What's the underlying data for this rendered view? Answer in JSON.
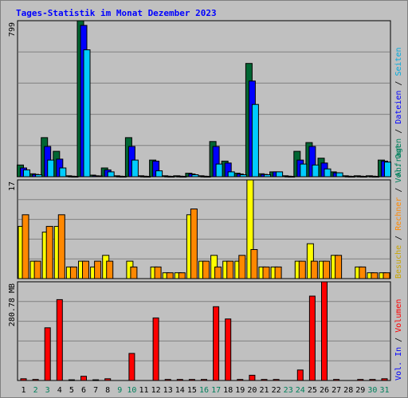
{
  "title": "Tages-Statistik im Monat Dezember 2023",
  "colors": {
    "bg": "#c0c0c0",
    "grid": "#808080",
    "title": "#0000ff",
    "anfragen": "#006633",
    "dateien": "#0000ff",
    "seiten": "#00ccff",
    "besuche": "#ffff00",
    "rechner": "#ff8800",
    "volumen_kb": "#ff0000",
    "weekday_label": "#000000",
    "weekend_label": "#00805c"
  },
  "labels": {
    "panel1_max": "799",
    "panel2_max": "17",
    "panel3_max": "280.78 MB",
    "right1_parts": [
      {
        "text": "Anfragen",
        "color": "#00805c"
      },
      {
        "text": " / ",
        "color": "#000000"
      },
      {
        "text": "Dateien",
        "color": "#0000ff"
      },
      {
        "text": " / ",
        "color": "#000000"
      },
      {
        "text": "Seiten",
        "color": "#00aadd"
      }
    ],
    "right2_parts": [
      {
        "text": "Besuche",
        "color": "#c8a400"
      },
      {
        "text": " / ",
        "color": "#000000"
      },
      {
        "text": "Rechner",
        "color": "#ff8800"
      },
      {
        "text": " / ",
        "color": "#000000"
      },
      {
        "text": "Vol. Out",
        "color": "#00805c"
      }
    ],
    "right3_parts": [
      {
        "text": "Vol. In",
        "color": "#0000ff"
      },
      {
        "text": " / ",
        "color": "#000000"
      },
      {
        "text": "Volumen",
        "color": "#ff0000"
      }
    ]
  },
  "chart_data": [
    {
      "type": "bar",
      "days": [
        1,
        2,
        3,
        4,
        5,
        6,
        7,
        8,
        9,
        10,
        11,
        12,
        13,
        14,
        15,
        16,
        17,
        18,
        19,
        20,
        21,
        22,
        23,
        24,
        25,
        26,
        27,
        28,
        29,
        30,
        31
      ],
      "weekend": [
        2,
        3,
        9,
        10,
        16,
        17,
        23,
        24,
        30,
        31
      ],
      "ylim": [
        0,
        799
      ],
      "ymax_label": "799",
      "series": [
        {
          "name": "Anfragen",
          "values": [
            60,
            15,
            200,
            130,
            5,
            799,
            8,
            45,
            5,
            200,
            5,
            85,
            5,
            5,
            18,
            5,
            180,
            80,
            18,
            580,
            15,
            25,
            5,
            130,
            175,
            95,
            25,
            5,
            5,
            5,
            85
          ]
        },
        {
          "name": "Dateien",
          "values": [
            45,
            12,
            155,
            90,
            3,
            775,
            5,
            35,
            3,
            155,
            3,
            80,
            3,
            3,
            14,
            3,
            155,
            70,
            14,
            490,
            12,
            25,
            3,
            85,
            155,
            70,
            20,
            3,
            3,
            3,
            80
          ]
        },
        {
          "name": "Seiten",
          "values": [
            35,
            10,
            85,
            45,
            2,
            650,
            4,
            25,
            2,
            85,
            2,
            30,
            2,
            2,
            10,
            2,
            65,
            25,
            10,
            370,
            10,
            25,
            2,
            65,
            60,
            40,
            20,
            2,
            2,
            2,
            75
          ]
        }
      ]
    },
    {
      "type": "bar",
      "ylim": [
        0,
        17
      ],
      "ymax_label": "17",
      "series": [
        {
          "name": "Besuche",
          "values": [
            9,
            3,
            8,
            9,
            2,
            3,
            2,
            4,
            0,
            3,
            0,
            2,
            1,
            1,
            11,
            3,
            4,
            3,
            3,
            17,
            2,
            2,
            0,
            3,
            6,
            3,
            4,
            0,
            2,
            1,
            1
          ]
        },
        {
          "name": "Rechner",
          "values": [
            11,
            3,
            9,
            11,
            2,
            3,
            3,
            3,
            0,
            2,
            0,
            2,
            1,
            1,
            12,
            3,
            2,
            3,
            4,
            5,
            2,
            2,
            0,
            3,
            3,
            3,
            4,
            0,
            2,
            1,
            1
          ]
        }
      ]
    },
    {
      "type": "bar",
      "ylim": [
        0,
        280.78
      ],
      "ymax_label": "280.78 MB",
      "series": [
        {
          "name": "Volumen",
          "values": [
            5,
            3,
            150,
            230,
            2,
            12,
            2,
            5,
            0,
            77,
            0,
            178,
            3,
            3,
            3,
            3,
            210,
            175,
            3,
            15,
            3,
            3,
            0,
            30,
            240,
            280.78,
            3,
            0,
            3,
            3,
            5
          ]
        }
      ]
    }
  ]
}
